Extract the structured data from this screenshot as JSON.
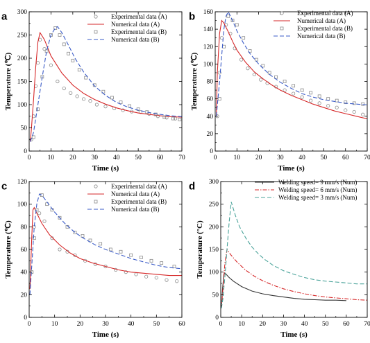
{
  "chart_data": [
    {
      "panel": "a",
      "type": "line",
      "xlabel": "Time (s)",
      "ylabel": "Temperature (℃)",
      "xlim": [
        0,
        70
      ],
      "ylim": [
        0,
        300
      ],
      "xticks": [
        0,
        10,
        20,
        30,
        40,
        50,
        60,
        70
      ],
      "yticks": [
        0,
        50,
        100,
        150,
        200,
        250,
        300
      ],
      "legend_position": "top-right",
      "series": [
        {
          "name": "Experimental data (A)",
          "style": "circle",
          "color": "#8c8c8c",
          "x": [
            1,
            2,
            3,
            4,
            5,
            7,
            10,
            13,
            16,
            19,
            22,
            25,
            28,
            31,
            35,
            39,
            43,
            47,
            51,
            55,
            59,
            63,
            67
          ],
          "y": [
            25,
            75,
            140,
            190,
            240,
            220,
            185,
            150,
            135,
            125,
            118,
            112,
            108,
            100,
            96,
            92,
            88,
            85,
            84,
            80,
            75,
            72,
            70
          ]
        },
        {
          "name": "Numerical data (A)",
          "style": "solid",
          "color": "#d62728",
          "x": [
            0.5,
            1,
            2,
            3,
            4,
            5,
            7,
            10,
            15,
            20,
            25,
            30,
            35,
            40,
            45,
            50,
            55,
            60,
            65,
            70
          ],
          "y": [
            20,
            45,
            110,
            180,
            235,
            255,
            240,
            205,
            168,
            142,
            124,
            111,
            101,
            93,
            87,
            82,
            79,
            76,
            74,
            73
          ]
        },
        {
          "name": "Experimental data (B)",
          "style": "square",
          "color": "#8c8c8c",
          "x": [
            2,
            4,
            6,
            8,
            10,
            12,
            14,
            16,
            18,
            20,
            23,
            26,
            30,
            34,
            38,
            42,
            46,
            50,
            54,
            58,
            62,
            66,
            69
          ],
          "y": [
            30,
            90,
            160,
            215,
            250,
            265,
            250,
            230,
            210,
            195,
            175,
            158,
            142,
            128,
            115,
            105,
            97,
            90,
            84,
            79,
            73,
            70,
            68
          ]
        },
        {
          "name": "Numerical data (B)",
          "style": "dash",
          "color": "#3a5bc7",
          "x": [
            0.5,
            2,
            4,
            6,
            8,
            10,
            12,
            13,
            15,
            18,
            21,
            25,
            30,
            35,
            40,
            45,
            50,
            55,
            60,
            65,
            70
          ],
          "y": [
            20,
            40,
            100,
            160,
            215,
            250,
            265,
            268,
            255,
            228,
            200,
            170,
            140,
            120,
            105,
            95,
            88,
            83,
            79,
            76,
            74
          ]
        }
      ]
    },
    {
      "panel": "b",
      "type": "line",
      "xlabel": "Time (s)",
      "ylabel": "Temperature (℃)",
      "xlim": [
        0,
        70
      ],
      "ylim": [
        0,
        160
      ],
      "xticks": [
        0,
        10,
        20,
        30,
        40,
        50,
        60,
        70
      ],
      "yticks": [
        0,
        20,
        40,
        60,
        80,
        100,
        120,
        140,
        160
      ],
      "legend_position": "top-right",
      "series": [
        {
          "name": "Experimental data (A)",
          "style": "circle",
          "color": "#8c8c8c",
          "x": [
            1,
            2,
            3,
            5,
            7,
            9,
            12,
            15,
            18,
            21,
            24,
            28,
            32,
            36,
            40,
            44,
            48,
            52,
            56,
            60,
            64,
            68
          ],
          "y": [
            40,
            90,
            130,
            145,
            135,
            118,
            105,
            95,
            88,
            82,
            78,
            74,
            70,
            66,
            62,
            58,
            55,
            52,
            50,
            47,
            45,
            42
          ]
        },
        {
          "name": "Numerical data (A)",
          "style": "solid",
          "color": "#d62728",
          "x": [
            0.5,
            1,
            2,
            3,
            4,
            6,
            8,
            10,
            14,
            18,
            22,
            26,
            30,
            35,
            40,
            45,
            50,
            55,
            60,
            65,
            70
          ],
          "y": [
            40,
            90,
            135,
            150,
            147,
            137,
            126,
            116,
            102,
            91,
            83,
            76,
            70,
            64,
            59,
            54,
            50,
            46,
            43,
            40,
            37
          ]
        },
        {
          "name": "Experimental data (B)",
          "style": "square",
          "color": "#8c8c8c",
          "x": [
            2,
            4,
            6,
            8,
            10,
            13,
            16,
            19,
            22,
            25,
            28,
            32,
            36,
            40,
            44,
            48,
            52,
            56,
            60,
            64,
            68
          ],
          "y": [
            60,
            120,
            155,
            150,
            145,
            130,
            115,
            105,
            98,
            90,
            85,
            80,
            75,
            70,
            67,
            63,
            60,
            58,
            56,
            55,
            54
          ]
        },
        {
          "name": "Numerical data (B)",
          "style": "dash",
          "color": "#3a5bc7",
          "x": [
            0.5,
            2,
            4,
            5,
            6,
            8,
            10,
            13,
            16,
            20,
            25,
            30,
            35,
            40,
            45,
            50,
            55,
            60,
            65,
            70
          ],
          "y": [
            40,
            80,
            140,
            155,
            160,
            150,
            138,
            124,
            112,
            100,
            88,
            79,
            72,
            66,
            62,
            59,
            57,
            55,
            54,
            53
          ]
        }
      ]
    },
    {
      "panel": "c",
      "type": "line",
      "xlabel": "Time (s)",
      "ylabel": "Temperature (℃)",
      "xlim": [
        0,
        60
      ],
      "ylim": [
        0,
        120
      ],
      "xticks": [
        0,
        10,
        20,
        30,
        40,
        50,
        60
      ],
      "yticks": [
        0,
        20,
        40,
        60,
        80,
        100,
        120
      ],
      "legend_position": "top-right",
      "series": [
        {
          "name": "Experimental data (A)",
          "style": "circle",
          "color": "#8c8c8c",
          "x": [
            1,
            2,
            4,
            6,
            9,
            12,
            15,
            18,
            22,
            26,
            30,
            34,
            38,
            42,
            46,
            50,
            54,
            58
          ],
          "y": [
            40,
            80,
            92,
            85,
            70,
            60,
            58,
            55,
            50,
            47,
            45,
            42,
            40,
            38,
            36,
            35,
            33,
            32
          ]
        },
        {
          "name": "Numerical data (A)",
          "style": "solid",
          "color": "#d62728",
          "x": [
            0.3,
            1,
            1.5,
            2,
            3,
            5,
            8,
            12,
            16,
            20,
            25,
            30,
            35,
            40,
            45,
            50,
            55,
            60
          ],
          "y": [
            25,
            70,
            95,
            97,
            92,
            83,
            73,
            64,
            57,
            52,
            48,
            45,
            42,
            40,
            39,
            38,
            37,
            37
          ]
        },
        {
          "name": "Experimental data (B)",
          "style": "square",
          "color": "#8c8c8c",
          "x": [
            1,
            2,
            3,
            5,
            7,
            9,
            12,
            15,
            18,
            21,
            24,
            28,
            32,
            36,
            40,
            44,
            48,
            52,
            57
          ],
          "y": [
            40,
            70,
            95,
            108,
            100,
            95,
            88,
            80,
            75,
            72,
            68,
            65,
            60,
            58,
            55,
            53,
            50,
            48,
            45
          ]
        },
        {
          "name": "Numerical data (B)",
          "style": "dash",
          "color": "#3a5bc7",
          "x": [
            0.3,
            1,
            2,
            3,
            4,
            5,
            7,
            10,
            14,
            18,
            22,
            26,
            30,
            35,
            40,
            45,
            50,
            55,
            60
          ],
          "y": [
            20,
            45,
            80,
            100,
            109,
            108,
            102,
            93,
            83,
            75,
            69,
            64,
            60,
            56,
            52,
            49,
            46,
            44,
            43
          ]
        }
      ]
    },
    {
      "panel": "d",
      "type": "line",
      "xlabel": "Time (s)",
      "ylabel": "Temperature (°C)",
      "xlim": [
        0,
        70
      ],
      "ylim": [
        0,
        300
      ],
      "xticks": [
        0,
        10,
        20,
        30,
        40,
        50,
        60,
        70
      ],
      "yticks": [
        0,
        50,
        100,
        150,
        200,
        250,
        300
      ],
      "legend_position": "top-right",
      "series": [
        {
          "name": "Welding speed= 9 mm/s (Num)",
          "style": "solid",
          "color": "#333333",
          "x": [
            0.3,
            0.8,
            1.5,
            2,
            4,
            6,
            10,
            15,
            20,
            25,
            30,
            35,
            40,
            45,
            50,
            55,
            60
          ],
          "y": [
            20,
            60,
            95,
            98,
            88,
            80,
            68,
            58,
            52,
            48,
            45,
            42,
            40,
            39,
            38,
            38,
            37
          ]
        },
        {
          "name": "Welding speed= 6 mm/s (Num)",
          "style": "dashdot",
          "color": "#d62728",
          "x": [
            0.3,
            1,
            2,
            3,
            5,
            8,
            12,
            16,
            20,
            25,
            30,
            35,
            40,
            45,
            50,
            55,
            60,
            65,
            70
          ],
          "y": [
            20,
            60,
            120,
            150,
            137,
            121,
            104,
            91,
            81,
            71,
            63,
            57,
            52,
            48,
            45,
            43,
            41,
            39,
            38
          ]
        },
        {
          "name": "Welding speed= 3 mm/s (Num)",
          "style": "dash",
          "color": "#4aa39a",
          "x": [
            0.3,
            1,
            2,
            3,
            4,
            5,
            6,
            7,
            9,
            12,
            15,
            18,
            21,
            25,
            30,
            35,
            40,
            45,
            50,
            55,
            60,
            65,
            70
          ],
          "y": [
            20,
            40,
            90,
            150,
            210,
            255,
            240,
            225,
            200,
            175,
            155,
            140,
            128,
            115,
            103,
            95,
            88,
            83,
            80,
            78,
            76,
            74,
            74
          ]
        }
      ]
    }
  ]
}
